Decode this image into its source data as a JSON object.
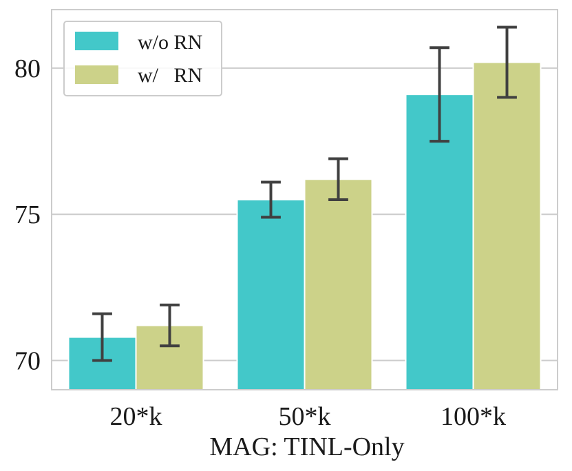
{
  "chart_data": {
    "type": "bar",
    "title": "",
    "xlabel": "MAG: TINL-Only",
    "ylabel": "",
    "categories": [
      "20*k",
      "50*k",
      "100*k"
    ],
    "ylim": [
      69,
      82
    ],
    "yticks": [
      70,
      75,
      80
    ],
    "grid": "horizontal",
    "legend_position": "top-left",
    "series": [
      {
        "name": "w/o RN",
        "color": "#43c8c9",
        "values": [
          70.8,
          75.5,
          79.1
        ],
        "error_low": [
          70.0,
          74.9,
          77.5
        ],
        "error_high": [
          71.6,
          76.1,
          80.7
        ]
      },
      {
        "name": "w/   RN",
        "color": "#ccd289",
        "values": [
          71.2,
          76.2,
          80.2
        ],
        "error_low": [
          70.5,
          75.5,
          79.0
        ],
        "error_high": [
          71.9,
          76.9,
          81.4
        ]
      }
    ],
    "errorbar_color": "#404040",
    "grid_color": "#cccccc",
    "frame_color": "#cccccc"
  }
}
